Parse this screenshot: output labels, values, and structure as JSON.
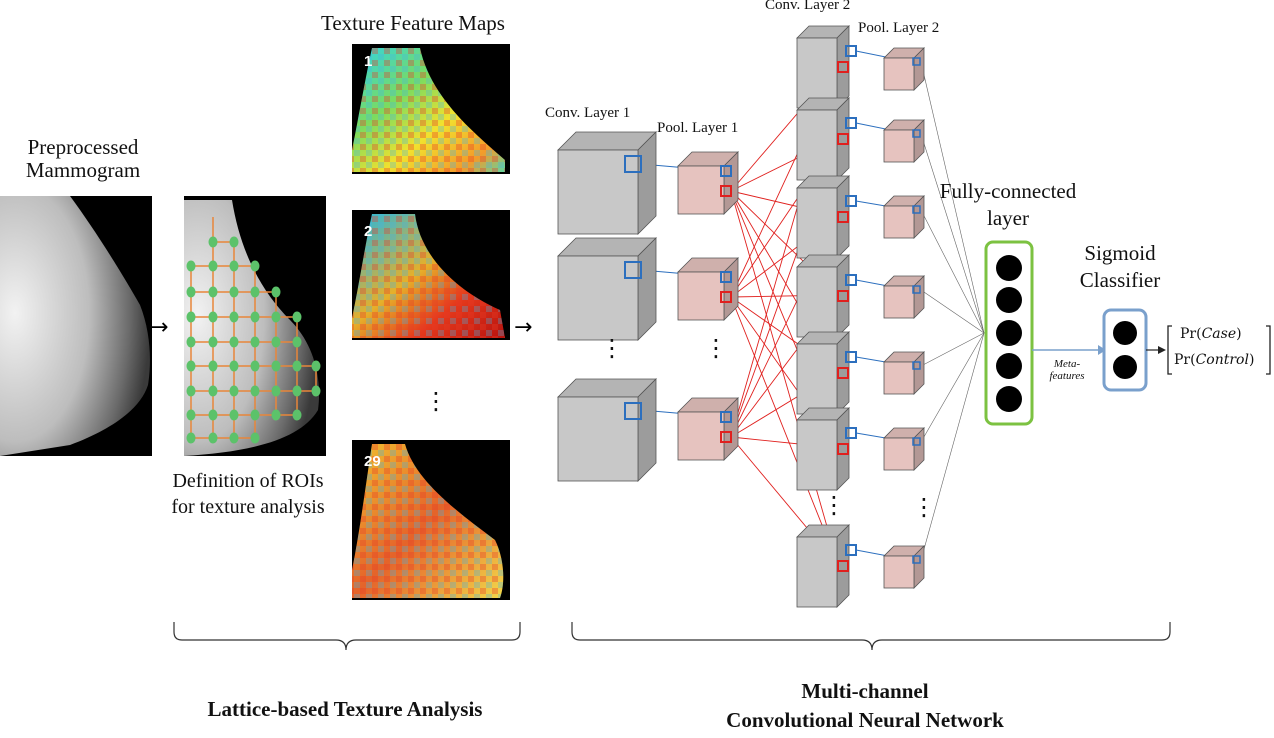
{
  "labels": {
    "preprocessed_line1": "Preprocessed",
    "preprocessed_line2": "Mammogram",
    "texture_maps_title": "Texture Feature Maps",
    "roi_line1": "Definition  of ROIs",
    "roi_line2": "for texture  analysis",
    "conv1": "Conv. Layer 1",
    "pool1": "Pool. Layer 1",
    "conv2": "Conv. Layer 2",
    "pool2": "Pool. Layer 2",
    "fc_line1": "Fully-connected",
    "fc_line2": "layer",
    "sig_line1": "Sigmoid",
    "sig_line2": "Classifier",
    "meta_line1": "Meta-",
    "meta_line2": "features",
    "out_case_fn": "Pr(",
    "out_case_var": "Case",
    "out_control_fn": "Pr(",
    "out_control_var": "Control",
    "close_paren": ")",
    "section_left": "Lattice-based Texture  Analysis",
    "section_right_line1": "Multi-channel",
    "section_right_line2": "Convolutional  Neural Network",
    "map_numbers": [
      "1",
      "2",
      "29"
    ],
    "ellipsis": "⋮"
  },
  "colors": {
    "conv_box": "#c8c8c8",
    "pool_box": "#e6c3bf",
    "blue": "#2c6fbe",
    "red": "#e0201e",
    "fc_border": "#7cc241",
    "sig_border": "#7aa0cc",
    "roi_dot": "#5cc26a",
    "roi_line": "#e8863a"
  }
}
